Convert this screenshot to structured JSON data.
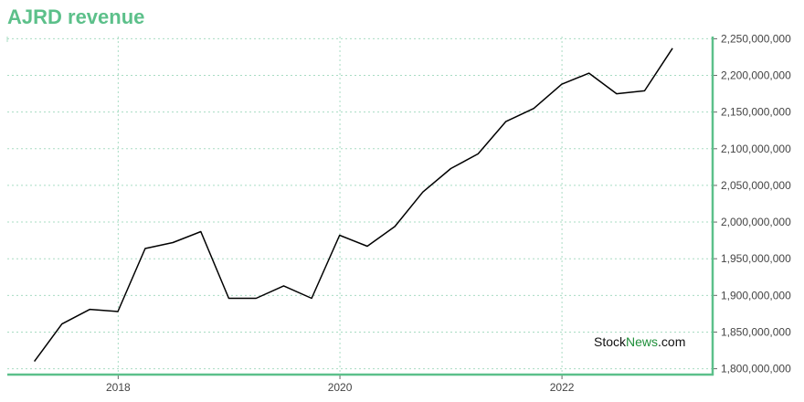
{
  "chart_data": {
    "type": "line",
    "title": "AJRD revenue",
    "xlabel": "",
    "ylabel": "",
    "x": [
      "2017-03-31",
      "2017-06-30",
      "2017-09-30",
      "2017-12-31",
      "2018-03-31",
      "2018-06-30",
      "2018-09-30",
      "2018-12-31",
      "2019-03-31",
      "2019-06-30",
      "2019-09-30",
      "2019-12-31",
      "2020-03-31",
      "2020-06-30",
      "2020-09-30",
      "2020-12-31",
      "2021-03-31",
      "2021-06-30",
      "2021-09-30",
      "2021-12-31",
      "2022-03-31",
      "2022-06-30",
      "2022-09-30",
      "2022-12-31"
    ],
    "series": [
      {
        "values": [
          1810000000,
          1861000000,
          1881000000,
          1878000000,
          1964000000,
          1972000000,
          1987000000,
          1896000000,
          1896000000,
          1913000000,
          1896000000,
          1982000000,
          1967000000,
          1994000000,
          2041000000,
          2073000000,
          2093000000,
          2137000000,
          2155000000,
          2188000000,
          2203000000,
          2175000000,
          2179000000,
          2237000000
        ],
        "color": "#000000"
      }
    ],
    "xlim": [
      "2017-01-01",
      "2023-05-12"
    ],
    "ylim": [
      1792000000,
      2253000000
    ],
    "x_ticks": [
      "2018",
      "2020",
      "2022"
    ],
    "y_ticks": [
      "1,800,000,000",
      "1,850,000,000",
      "1,900,000,000",
      "1,950,000,000",
      "2,000,000,000",
      "2,050,000,000",
      "2,100,000,000",
      "2,150,000,000",
      "2,200,000,000",
      "2,250,000,000"
    ],
    "grid": true,
    "y_axis_position": "right"
  },
  "watermark": {
    "part1": "Stock",
    "part2": "News",
    "part3": ".com"
  },
  "colors": {
    "accent": "#5cc08a",
    "grid": "#a8dcc3",
    "line": "#000000",
    "watermark_brand": "#1f8f3a"
  }
}
